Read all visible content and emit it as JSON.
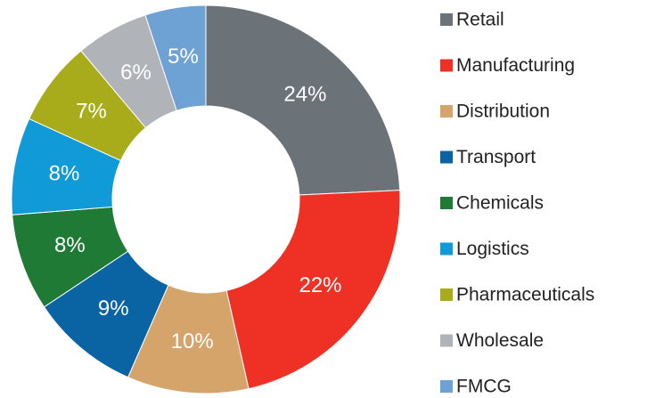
{
  "chart_data": {
    "type": "pie",
    "categories": [
      "Retail",
      "Manufacturing",
      "Distribution",
      "Transport",
      "Chemicals",
      "Logistics",
      "Pharmaceuticals",
      "Wholesale",
      "FMCG"
    ],
    "values": [
      24,
      22,
      10,
      9,
      8,
      8,
      7,
      6,
      5
    ],
    "value_labels": [
      "24%",
      "22%",
      "10%",
      "9%",
      "8%",
      "8%",
      "7%",
      "6%",
      "5%"
    ],
    "colors": [
      "#6b7278",
      "#ee3124",
      "#d4a46a",
      "#0a64a4",
      "#1e7a34",
      "#119ad8",
      "#a8ac1a",
      "#b0b4b8",
      "#6fa2d4"
    ],
    "legend": "right"
  }
}
